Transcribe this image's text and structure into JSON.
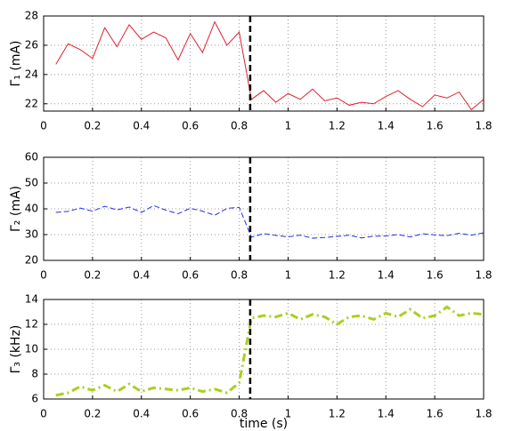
{
  "chart_data": [
    {
      "type": "line",
      "ylabel": "Γ₁ (mA)",
      "color": "#e0202e",
      "linestyle": "solid",
      "linewidth": 1,
      "x": [
        0.05,
        0.1,
        0.15,
        0.2,
        0.25,
        0.3,
        0.35,
        0.4,
        0.45,
        0.5,
        0.55,
        0.6,
        0.65,
        0.7,
        0.75,
        0.8,
        0.85,
        0.9,
        0.95,
        1.0,
        1.05,
        1.1,
        1.15,
        1.2,
        1.25,
        1.3,
        1.35,
        1.4,
        1.45,
        1.5,
        1.55,
        1.6,
        1.65,
        1.7,
        1.75,
        1.8
      ],
      "values": [
        24.7,
        26.1,
        25.7,
        25.1,
        27.2,
        25.9,
        27.4,
        26.4,
        26.9,
        26.5,
        25.0,
        26.8,
        25.5,
        27.6,
        26.0,
        26.9,
        22.3,
        22.9,
        22.1,
        22.7,
        22.3,
        23.0,
        22.2,
        22.4,
        21.9,
        22.1,
        22.0,
        22.5,
        22.9,
        22.3,
        21.8,
        22.6,
        22.4,
        22.8,
        21.6,
        22.3
      ],
      "xlim": [
        0,
        1.8
      ],
      "xticks": [
        0,
        0.2,
        0.4,
        0.6,
        0.8,
        1,
        1.2,
        1.4,
        1.6,
        1.8
      ],
      "ylim": [
        21.5,
        28
      ],
      "yticks": [
        22,
        24,
        26,
        28
      ],
      "grid": true,
      "vline": 0.845
    },
    {
      "type": "line",
      "ylabel": "Γ₂ (mA)",
      "color": "#2030e0",
      "linestyle": "dashed",
      "linewidth": 1,
      "x": [
        0.05,
        0.1,
        0.15,
        0.2,
        0.25,
        0.3,
        0.35,
        0.4,
        0.45,
        0.5,
        0.55,
        0.6,
        0.65,
        0.7,
        0.75,
        0.8,
        0.85,
        0.9,
        0.95,
        1.0,
        1.05,
        1.1,
        1.15,
        1.2,
        1.25,
        1.3,
        1.35,
        1.4,
        1.45,
        1.5,
        1.55,
        1.6,
        1.65,
        1.7,
        1.75,
        1.8
      ],
      "values": [
        38.6,
        39.0,
        40.3,
        39.1,
        41.0,
        39.6,
        40.7,
        38.6,
        41.3,
        39.5,
        38.1,
        40.2,
        39.1,
        37.5,
        40.2,
        40.6,
        29.0,
        30.4,
        29.7,
        29.1,
        29.8,
        28.6,
        28.9,
        29.3,
        29.8,
        28.7,
        29.4,
        29.5,
        30.0,
        29.1,
        30.3,
        29.9,
        29.6,
        30.5,
        29.8,
        30.7
      ],
      "xlim": [
        0,
        1.8
      ],
      "xticks": [
        0,
        0.2,
        0.4,
        0.6,
        0.8,
        1,
        1.2,
        1.4,
        1.6,
        1.8
      ],
      "ylim": [
        20,
        60
      ],
      "yticks": [
        20,
        30,
        40,
        50,
        60
      ],
      "grid": true,
      "vline": 0.845
    },
    {
      "type": "line",
      "ylabel": "Γ₃ (kHz)",
      "xlabel": "time (s)",
      "color": "#a8d020",
      "linestyle": "dashdot",
      "linewidth": 3,
      "x": [
        0.05,
        0.1,
        0.15,
        0.2,
        0.25,
        0.3,
        0.35,
        0.4,
        0.45,
        0.5,
        0.55,
        0.6,
        0.65,
        0.7,
        0.75,
        0.8,
        0.85,
        0.9,
        0.95,
        1.0,
        1.05,
        1.1,
        1.15,
        1.2,
        1.25,
        1.3,
        1.35,
        1.4,
        1.45,
        1.5,
        1.55,
        1.6,
        1.65,
        1.7,
        1.75,
        1.8
      ],
      "values": [
        6.3,
        6.5,
        7.0,
        6.7,
        7.1,
        6.6,
        7.2,
        6.6,
        6.9,
        6.8,
        6.7,
        6.9,
        6.6,
        6.8,
        6.5,
        7.3,
        12.5,
        12.7,
        12.6,
        12.9,
        12.4,
        12.8,
        12.6,
        12.0,
        12.6,
        12.7,
        12.4,
        12.9,
        12.6,
        13.2,
        12.5,
        12.7,
        13.4,
        12.7,
        12.9,
        12.8
      ],
      "xlim": [
        0,
        1.8
      ],
      "xticks": [
        0,
        0.2,
        0.4,
        0.6,
        0.8,
        1,
        1.2,
        1.4,
        1.6,
        1.8
      ],
      "ylim": [
        6,
        14
      ],
      "yticks": [
        6,
        8,
        10,
        12,
        14
      ],
      "grid": true,
      "vline": 0.845
    }
  ]
}
